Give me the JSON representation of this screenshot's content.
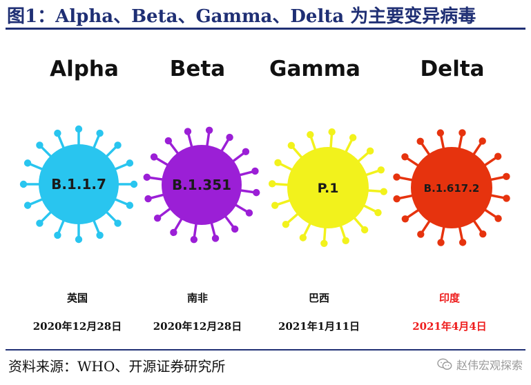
{
  "title": "图1：Alpha、Beta、Gamma、Delta 为主要变异病毒",
  "variants": [
    {
      "name": "Alpha",
      "code": "B.1.1.7",
      "country": "英国",
      "date": "2020年12月28日",
      "color": "#29c5ef"
    },
    {
      "name": "Beta",
      "code": "B.1.351",
      "country": "南非",
      "date": "2020年12月28日",
      "color": "#9b1fd6"
    },
    {
      "name": "Gamma",
      "code": "P.1",
      "country": "巴西",
      "date": "2021年1月11日",
      "color": "#f2f21c"
    },
    {
      "name": "Delta",
      "code": "B.1.617.2",
      "country": "印度",
      "date": "2021年4月4日",
      "color": "#e6330e"
    }
  ],
  "highlight_color": "#ee1c1c",
  "footer": {
    "source": "资料来源：WHO、开源证券研究所",
    "watermark": "赵伟宏观探索"
  }
}
